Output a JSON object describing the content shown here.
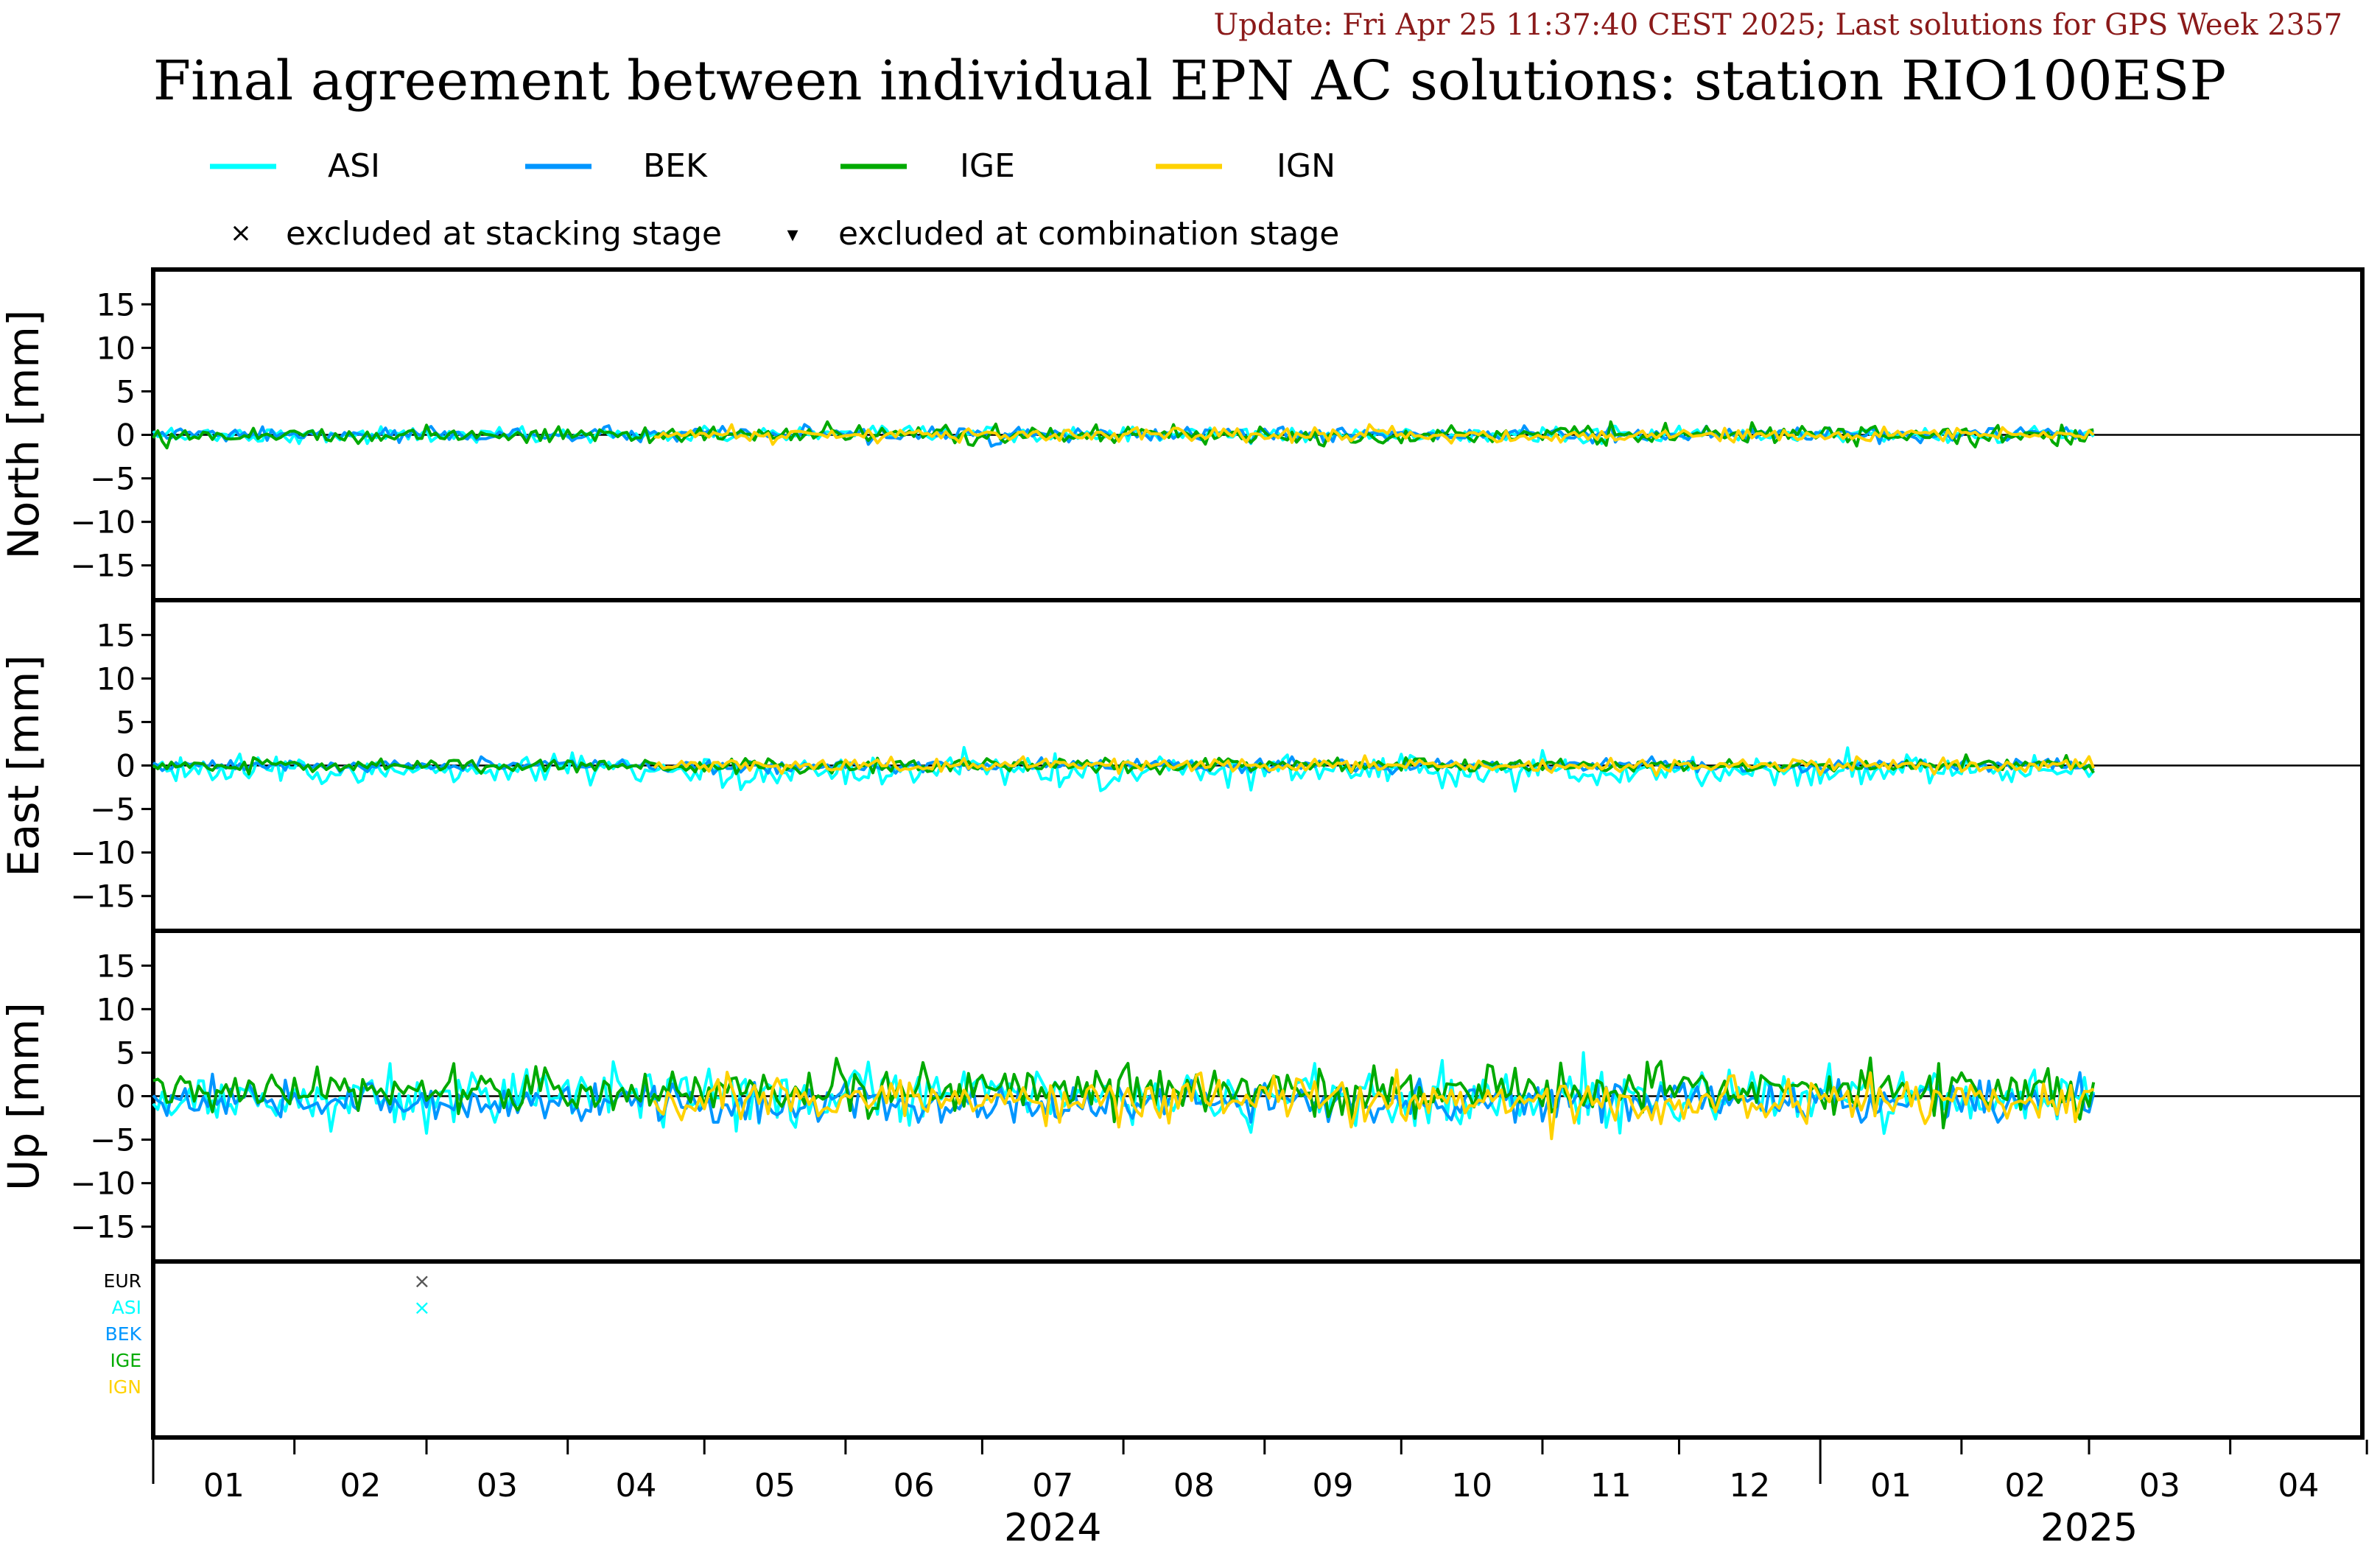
{
  "update_text": "Update: Fri Apr 25 11:37:40 CEST 2025; Last solutions for GPS Week 2357",
  "title": "Final agreement between individual EPN AC solutions: station RIO100ESP",
  "legend": {
    "series": [
      {
        "name": "ASI",
        "color": "#00ffff"
      },
      {
        "name": "BEK",
        "color": "#0096ff"
      },
      {
        "name": "IGE",
        "color": "#00aa00"
      },
      {
        "name": "IGN",
        "color": "#ffd200"
      }
    ],
    "markers": [
      {
        "symbol": "×",
        "label": "excluded at stacking stage"
      },
      {
        "symbol": "▾",
        "label": "excluded at combination stage"
      }
    ]
  },
  "chart_data": {
    "type": "line",
    "x_range": [
      "2024-01-01",
      "2025-04-30"
    ],
    "panels": [
      {
        "ylabel": "North [mm]",
        "ylim": [
          -19,
          19
        ],
        "yticks": [
          15,
          10,
          5,
          0,
          -5,
          -10,
          -15
        ]
      },
      {
        "ylabel": "East [mm]",
        "ylim": [
          -19,
          19
        ],
        "yticks": [
          15,
          10,
          5,
          0,
          -5,
          -10,
          -15
        ]
      },
      {
        "ylabel": "Up [mm]",
        "ylim": [
          -19,
          19
        ],
        "yticks": [
          15,
          10,
          5,
          0,
          -5,
          -10,
          -15
        ]
      }
    ],
    "series": [
      {
        "name": "ASI",
        "color": "#00ffff",
        "start": "2024-01-01",
        "end": "2025-03-02",
        "north": {
          "std": 0.45,
          "max": 1.0
        },
        "east": {
          "std": 0.9,
          "max": 3.5,
          "bias": -0.6
        },
        "up": {
          "std": 1.7,
          "max": 5.0
        }
      },
      {
        "name": "BEK",
        "color": "#0096ff",
        "start": "2024-01-01",
        "end": "2025-03-02",
        "north": {
          "std": 0.4,
          "max": 2.0
        },
        "east": {
          "std": 0.35,
          "max": 1.0
        },
        "up": {
          "std": 1.2,
          "max": 3.0,
          "bias": -0.6
        }
      },
      {
        "name": "IGE",
        "color": "#00aa00",
        "start": "2024-01-01",
        "end": "2025-03-02",
        "north": {
          "std": 0.5,
          "max": 1.5
        },
        "east": {
          "std": 0.4,
          "max": 1.5
        },
        "up": {
          "std": 1.4,
          "max": 7.0,
          "bias": 0.7
        }
      },
      {
        "name": "IGN",
        "color": "#ffd200",
        "start": "2024-04-20",
        "end": "2025-03-02",
        "north": {
          "std": 0.4,
          "max": 1.5
        },
        "east": {
          "std": 0.4,
          "max": 1.5
        },
        "up": {
          "std": 1.3,
          "max": 7.0,
          "bias": -0.4
        }
      }
    ],
    "exclusion_panel": {
      "rows": [
        {
          "name": "EUR",
          "color": "#000000"
        },
        {
          "name": "ASI",
          "color": "#00ffff"
        },
        {
          "name": "BEK",
          "color": "#0096ff"
        },
        {
          "name": "IGE",
          "color": "#00aa00"
        },
        {
          "name": "IGN",
          "color": "#ffd200"
        }
      ],
      "marks": [
        {
          "row": "EUR",
          "date": "2024-02-29",
          "symbol": "×"
        },
        {
          "row": "ASI",
          "date": "2024-02-29",
          "symbol": "×"
        }
      ]
    },
    "x_months": [
      "01",
      "02",
      "03",
      "04",
      "05",
      "06",
      "07",
      "08",
      "09",
      "10",
      "11",
      "12",
      "01",
      "02",
      "03",
      "04"
    ],
    "x_years": [
      {
        "label": "2024",
        "center_month": 6.5
      },
      {
        "label": "2025",
        "center_month": 14
      }
    ]
  }
}
